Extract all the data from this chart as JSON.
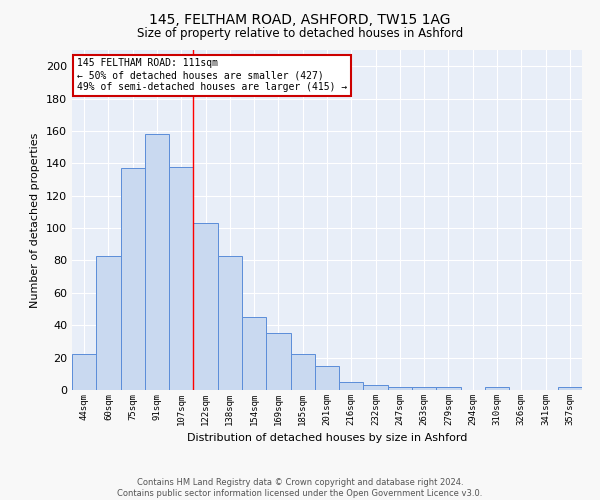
{
  "title1": "145, FELTHAM ROAD, ASHFORD, TW15 1AG",
  "title2": "Size of property relative to detached houses in Ashford",
  "xlabel": "Distribution of detached houses by size in Ashford",
  "ylabel": "Number of detached properties",
  "categories": [
    "44sqm",
    "60sqm",
    "75sqm",
    "91sqm",
    "107sqm",
    "122sqm",
    "138sqm",
    "154sqm",
    "169sqm",
    "185sqm",
    "201sqm",
    "216sqm",
    "232sqm",
    "247sqm",
    "263sqm",
    "279sqm",
    "294sqm",
    "310sqm",
    "326sqm",
    "341sqm",
    "357sqm"
  ],
  "values": [
    22,
    83,
    137,
    158,
    138,
    103,
    83,
    45,
    35,
    22,
    15,
    5,
    3,
    2,
    2,
    2,
    0,
    2,
    0,
    0,
    2
  ],
  "bar_color": "#c9d9f0",
  "bar_edge_color": "#5b8dd9",
  "background_color": "#e8eef8",
  "grid_color": "#ffffff",
  "red_line_x": 4.5,
  "annotation_text": "145 FELTHAM ROAD: 111sqm\n← 50% of detached houses are smaller (427)\n49% of semi-detached houses are larger (415) →",
  "annotation_box_color": "#ffffff",
  "annotation_box_edge_color": "#cc0000",
  "ylim": [
    0,
    210
  ],
  "yticks": [
    0,
    20,
    40,
    60,
    80,
    100,
    120,
    140,
    160,
    180,
    200
  ],
  "footer": "Contains HM Land Registry data © Crown copyright and database right 2024.\nContains public sector information licensed under the Open Government Licence v3.0."
}
